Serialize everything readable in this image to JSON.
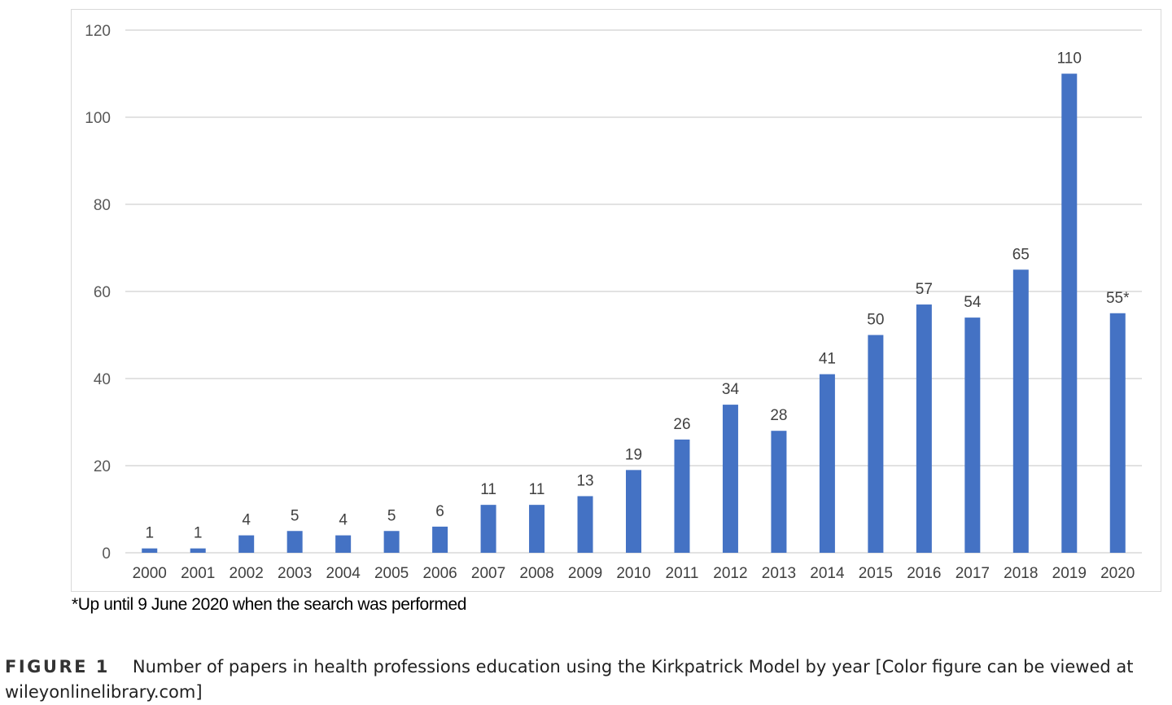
{
  "chart_data": {
    "type": "bar",
    "categories": [
      "2000",
      "2001",
      "2002",
      "2003",
      "2004",
      "2005",
      "2006",
      "2007",
      "2008",
      "2009",
      "2010",
      "2011",
      "2012",
      "2013",
      "2014",
      "2015",
      "2016",
      "2017",
      "2018",
      "2019",
      "2020"
    ],
    "values": [
      1,
      1,
      4,
      5,
      4,
      5,
      6,
      11,
      11,
      13,
      19,
      26,
      34,
      28,
      41,
      50,
      57,
      54,
      65,
      110,
      55
    ],
    "data_labels": [
      "1",
      "1",
      "4",
      "5",
      "4",
      "5",
      "6",
      "11",
      "11",
      "13",
      "19",
      "26",
      "34",
      "28",
      "41",
      "50",
      "57",
      "54",
      "65",
      "110",
      "55*"
    ],
    "yticks": [
      0,
      20,
      40,
      60,
      80,
      100,
      120
    ],
    "ylim": [
      0,
      120
    ],
    "grid": true,
    "bar_color": "#4472c4",
    "grid_color": "#d9d9d9",
    "title": "",
    "xlabel": "",
    "ylabel": ""
  },
  "footnote": "*Up until 9 June 2020 when the search was performed",
  "caption": {
    "label": "FIGURE 1",
    "text": "Number of papers in health professions education using the Kirkpatrick Model by year [Color figure can be viewed at wileyonlinelibrary.com]"
  }
}
